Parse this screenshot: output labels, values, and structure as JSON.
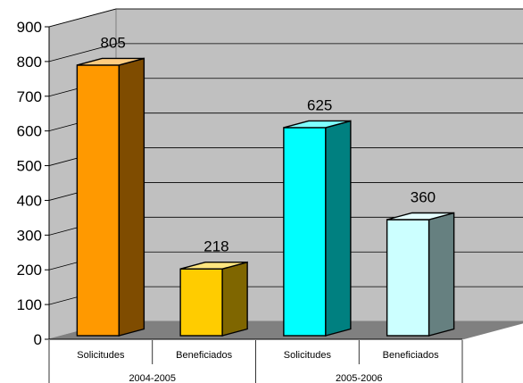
{
  "chart_data": {
    "type": "bar",
    "title": "",
    "xlabel": "",
    "ylabel": "",
    "ylim": [
      0,
      900
    ],
    "yticks": [
      0,
      100,
      200,
      300,
      400,
      500,
      600,
      700,
      800,
      900
    ],
    "grid": true,
    "categories": [
      {
        "label": "Solicitudes",
        "group": "2004-2005",
        "value": 805,
        "color": "#FF9900",
        "side_color": "#7F4C00",
        "top_color": "#FFCC80"
      },
      {
        "label": "Beneficiados",
        "group": "2004-2005",
        "value": 218,
        "color": "#FFCC00",
        "side_color": "#7F6600",
        "top_color": "#FFE680"
      },
      {
        "label": "Solicitudes",
        "group": "2005-2006",
        "value": 625,
        "color": "#00FFFF",
        "side_color": "#008080",
        "top_color": "#80FFFF"
      },
      {
        "label": "Beneficiados",
        "group": "2005-2006",
        "value": 360,
        "color": "#CCFFFF",
        "side_color": "#668080",
        "top_color": "#E6FFFF"
      }
    ],
    "groups": [
      "2004-2005",
      "2005-2006"
    ]
  }
}
